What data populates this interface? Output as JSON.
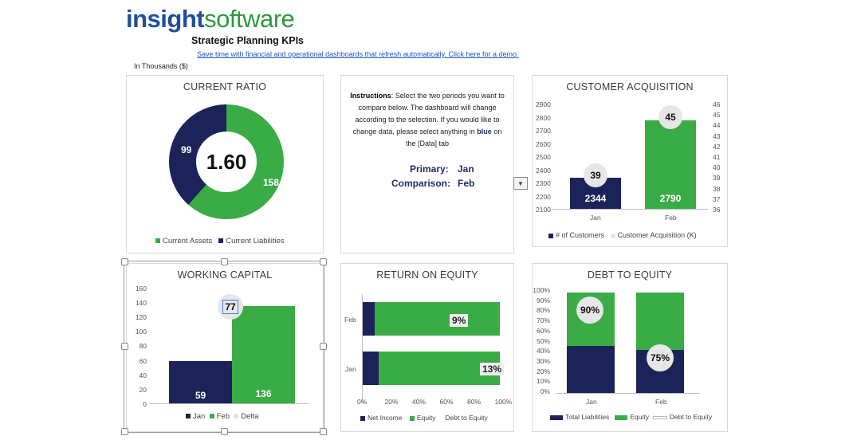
{
  "header": {
    "logo_part1": "insight",
    "logo_part2": "software",
    "title": "Strategic Planning KPIs",
    "demo_link": "Save time with financial and operational dashboards that refresh automatically. Click here for a demo.",
    "units": "In Thousands ($)"
  },
  "colors": {
    "navy": "#1b2359",
    "green": "#3aac46",
    "grey": "#e6e6e6"
  },
  "current_ratio": {
    "title": "CURRENT RATIO",
    "center_value": "1.60",
    "assets_label": "158",
    "liabilities_label": "99",
    "legend_assets": "Current Assets",
    "legend_liabilities": "Current Liabilities",
    "chart_data": {
      "type": "pie",
      "labels": [
        "Current Assets",
        "Current Liabilities"
      ],
      "values": [
        158,
        99
      ]
    }
  },
  "instructions": {
    "bold": "Instructions",
    "line1": ": Select the two periods you want to",
    "line2": "compare below. The dashboard will change",
    "line3": "according to the selection. If you would like to",
    "line4a": "change data, please select anything in ",
    "line4b": "blue",
    "line4c": " on",
    "line5": "the [Data] tab",
    "primary_label": "Primary:",
    "primary_value": "Jan",
    "comparison_label": "Comparison:",
    "comparison_value": "Feb",
    "dropdown_icon": "triangle-down"
  },
  "customer_acquisition": {
    "title": "CUSTOMER ACQUISITION",
    "y_left_ticks": [
      "2900",
      "2800",
      "2700",
      "2600",
      "2500",
      "2400",
      "2300",
      "2200",
      "2100"
    ],
    "y_right_ticks": [
      "46",
      "45",
      "44",
      "43",
      "42",
      "41",
      "40",
      "39",
      "38",
      "37",
      "36"
    ],
    "categories": [
      "Jan",
      "Feb"
    ],
    "bar_labels": [
      "2344",
      "2790"
    ],
    "bubble_labels": [
      "39",
      "45"
    ],
    "legend_customers": "# of Customers",
    "legend_acq": "Customer Acquisition (K)",
    "chart_data": {
      "type": "bar",
      "categories": [
        "Jan",
        "Feb"
      ],
      "series": [
        {
          "name": "# of Customers",
          "values": [
            2344,
            2790
          ]
        },
        {
          "name": "Customer Acquisition (K)",
          "values": [
            39,
            45
          ]
        }
      ],
      "ylim": [
        2100,
        2900
      ],
      "y2lim": [
        36,
        46
      ]
    }
  },
  "working_capital": {
    "title": "WORKING CAPITAL",
    "y_ticks": [
      "160",
      "140",
      "120",
      "100",
      "80",
      "60",
      "40",
      "20",
      "0"
    ],
    "bar_labels": [
      "59",
      "136"
    ],
    "delta_label": "77",
    "legend": [
      "Jan",
      "Feb",
      "Delta"
    ],
    "chart_data": {
      "type": "bar",
      "categories": [
        "Jan",
        "Feb",
        "Delta"
      ],
      "values": [
        59,
        136,
        77
      ],
      "ylim": [
        0,
        160
      ]
    }
  },
  "return_on_equity": {
    "title": "RETURN ON EQUITY",
    "categories": [
      "Feb",
      "Jan"
    ],
    "labels": [
      "9%",
      "13%"
    ],
    "x_ticks": [
      "0%",
      "20%",
      "40%",
      "60%",
      "80%",
      "100%"
    ],
    "legend": [
      "Net Income",
      "Equity",
      "Debt to Equity"
    ],
    "chart_data": {
      "type": "bar",
      "categories": [
        "Feb",
        "Jan"
      ],
      "series": [
        {
          "name": "Net Income",
          "values": [
            9,
            13
          ]
        },
        {
          "name": "Equity",
          "values": [
            91,
            87
          ]
        }
      ],
      "xlim": [
        0,
        100
      ]
    }
  },
  "debt_to_equity": {
    "title": "DEBT TO EQUITY",
    "y_ticks": [
      "100%",
      "90%",
      "80%",
      "70%",
      "60%",
      "50%",
      "40%",
      "30%",
      "20%",
      "10%",
      "0%"
    ],
    "categories": [
      "Jan",
      "Feb"
    ],
    "labels": [
      "90%",
      "75%"
    ],
    "legend": [
      "Total Liabilities",
      "Equity",
      "Debt to Equity"
    ],
    "chart_data": {
      "type": "bar",
      "categories": [
        "Jan",
        "Feb"
      ],
      "series": [
        {
          "name": "Total Liabilities",
          "values": [
            47,
            43
          ]
        },
        {
          "name": "Equity",
          "values": [
            53,
            57
          ]
        },
        {
          "name": "Debt to Equity",
          "values": [
            90,
            75
          ]
        }
      ],
      "ylim": [
        0,
        100
      ]
    }
  }
}
